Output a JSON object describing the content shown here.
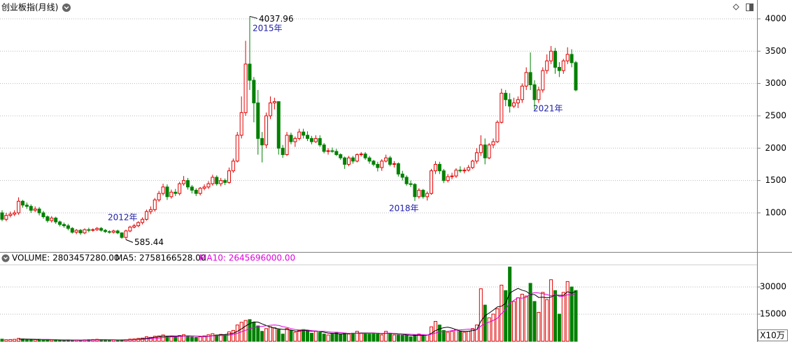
{
  "chart_data": [
    {
      "type": "candlestick",
      "title": "创业板指(月线)",
      "open": [
        1000,
        900,
        960,
        980,
        1000,
        1180,
        1120,
        1100,
        1040,
        1060,
        1000,
        940,
        880,
        920,
        860,
        820,
        800,
        760,
        700,
        730,
        690,
        740,
        730,
        740,
        760,
        730,
        710,
        700,
        720,
        690,
        620,
        720,
        780,
        800,
        850,
        900,
        1020,
        1050,
        1200,
        1300,
        1400,
        1250,
        1320,
        1300,
        1450,
        1500,
        1400,
        1350,
        1300,
        1380,
        1400,
        1450,
        1550,
        1450,
        1500,
        1470,
        1650,
        1800,
        2200,
        2550,
        3300,
        3050,
        2700,
        2150,
        2050,
        2500,
        2700,
        2720,
        2000,
        1900,
        2200,
        2100,
        2150,
        2250,
        2200,
        2150,
        2100,
        2150,
        2050,
        1950,
        1960,
        1950,
        1900,
        1850,
        1750,
        1850,
        1800,
        1900,
        1910,
        1850,
        1800,
        1750,
        1700,
        1800,
        1850,
        1750,
        1760,
        1600,
        1550,
        1450,
        1440,
        1250,
        1350,
        1250,
        1300,
        1650,
        1750,
        1650,
        1500,
        1560,
        1570,
        1660,
        1650,
        1660,
        1700,
        1800,
        1930,
        2050,
        1850,
        2050,
        2100,
        2400,
        2850,
        2750,
        2650,
        2700,
        2750,
        2960,
        3170,
        2980,
        2750,
        2900,
        3200,
        3350,
        3500,
        3250,
        3200,
        3350,
        3450,
        3322
      ],
      "high": [
        1040,
        1000,
        1020,
        1040,
        1240,
        1200,
        1160,
        1130,
        1100,
        1090,
        1030,
        960,
        950,
        940,
        880,
        850,
        830,
        780,
        750,
        750,
        760,
        770,
        760,
        780,
        780,
        750,
        730,
        740,
        740,
        700,
        740,
        800,
        830,
        870,
        930,
        1050,
        1100,
        1230,
        1340,
        1450,
        1440,
        1360,
        1370,
        1480,
        1570,
        1540,
        1430,
        1380,
        1400,
        1440,
        1490,
        1590,
        1580,
        1540,
        1530,
        1700,
        1840,
        2250,
        2800,
        3660,
        4037.96,
        3100,
        2900,
        2250,
        2550,
        2800,
        2780,
        2720,
        2050,
        2250,
        2240,
        2180,
        2300,
        2300,
        2260,
        2190,
        2200,
        2200,
        2080,
        2000,
        2010,
        1990,
        1920,
        1870,
        1880,
        1880,
        1920,
        1940,
        1940,
        1880,
        1820,
        1790,
        1830,
        1900,
        1880,
        1800,
        1780,
        1650,
        1580,
        1500,
        1460,
        1380,
        1370,
        1330,
        1680,
        1800,
        1790,
        1680,
        1600,
        1620,
        1690,
        1720,
        1700,
        1740,
        1820,
        2000,
        2200,
        2150,
        2080,
        2150,
        2430,
        2920,
        2900,
        2850,
        2780,
        2800,
        3000,
        3250,
        3480,
        3050,
        2950,
        3250,
        3450,
        3580,
        3550,
        3330,
        3380,
        3560,
        3530,
        3350
      ],
      "low": [
        870,
        870,
        930,
        950,
        970,
        1080,
        1060,
        1000,
        1010,
        960,
        910,
        850,
        850,
        830,
        790,
        770,
        730,
        680,
        670,
        660,
        670,
        700,
        710,
        720,
        710,
        690,
        680,
        680,
        670,
        600,
        585.44,
        700,
        760,
        780,
        820,
        880,
        980,
        1020,
        1170,
        1270,
        1200,
        1220,
        1260,
        1270,
        1420,
        1360,
        1300,
        1260,
        1270,
        1350,
        1370,
        1420,
        1420,
        1410,
        1430,
        1450,
        1620,
        1780,
        2150,
        2500,
        2900,
        2400,
        1900,
        1780,
        2000,
        2450,
        2600,
        1900,
        1850,
        1880,
        2060,
        2020,
        2120,
        2150,
        2110,
        2060,
        2080,
        2020,
        1920,
        1900,
        1930,
        1880,
        1820,
        1680,
        1720,
        1760,
        1780,
        1870,
        1820,
        1760,
        1720,
        1640,
        1650,
        1780,
        1720,
        1700,
        1560,
        1500,
        1420,
        1400,
        1184,
        1220,
        1220,
        1190,
        1280,
        1600,
        1600,
        1460,
        1470,
        1520,
        1540,
        1620,
        1610,
        1640,
        1680,
        1760,
        1880,
        1750,
        1830,
        2000,
        2080,
        2380,
        2650,
        2550,
        2620,
        2620,
        2700,
        2900,
        2900,
        2600,
        2700,
        2860,
        3150,
        3300,
        3150,
        3100,
        3150,
        3300,
        3250,
        2880
      ],
      "close": [
        900,
        960,
        980,
        1000,
        1180,
        1120,
        1100,
        1040,
        1060,
        1000,
        940,
        880,
        920,
        860,
        820,
        800,
        760,
        700,
        730,
        690,
        740,
        730,
        740,
        760,
        730,
        710,
        700,
        720,
        690,
        620,
        720,
        780,
        800,
        850,
        900,
        1020,
        1050,
        1200,
        1300,
        1400,
        1250,
        1320,
        1300,
        1450,
        1500,
        1400,
        1350,
        1300,
        1380,
        1400,
        1450,
        1550,
        1450,
        1500,
        1470,
        1650,
        1800,
        2200,
        2550,
        3300,
        3050,
        2700,
        2150,
        2050,
        2500,
        2700,
        2720,
        2000,
        1900,
        2200,
        2100,
        2150,
        2250,
        2200,
        2150,
        2100,
        2150,
        2050,
        1950,
        1960,
        1950,
        1900,
        1850,
        1750,
        1850,
        1800,
        1900,
        1910,
        1850,
        1800,
        1750,
        1700,
        1800,
        1850,
        1750,
        1760,
        1600,
        1550,
        1450,
        1440,
        1250,
        1350,
        1250,
        1300,
        1650,
        1750,
        1650,
        1500,
        1560,
        1570,
        1660,
        1650,
        1660,
        1700,
        1800,
        1930,
        2050,
        1850,
        2050,
        2100,
        2400,
        2850,
        2750,
        2650,
        2700,
        2750,
        2960,
        3170,
        2980,
        2750,
        2900,
        3200,
        3350,
        3500,
        3250,
        3200,
        3350,
        3450,
        3322,
        2900
      ],
      "annotations": [
        "2012年",
        "2015年",
        "2018年",
        "2021年"
      ],
      "up_color": "#e00000",
      "down_color": "#008000",
      "annotation_color": "#1c1ca8",
      "ylim": [
        406,
        4237
      ],
      "yticks": [
        1000,
        1500,
        2000,
        2500,
        3000,
        3500,
        4000
      ],
      "grid": true
    },
    {
      "type": "volume",
      "legend": [
        "VOLUME: 2803457280.00",
        "MA5: 2758166528.00",
        "MA10: 2645696000.00"
      ],
      "unit": "X10万",
      "values": [
        1200,
        900,
        1000,
        1100,
        1600,
        1300,
        900,
        800,
        900,
        1100,
        900,
        700,
        800,
        700,
        600,
        700,
        800,
        600,
        700,
        500,
        800,
        900,
        1000,
        1100,
        900,
        800,
        700,
        800,
        700,
        600,
        900,
        1200,
        1300,
        1600,
        1800,
        2500,
        2200,
        2800,
        3000,
        3500,
        2800,
        2600,
        2500,
        3200,
        3600,
        3000,
        2400,
        2200,
        2500,
        3000,
        3600,
        4200,
        3500,
        3800,
        3600,
        5200,
        6000,
        9000,
        10500,
        11500,
        12000,
        10500,
        8500,
        5500,
        7000,
        8000,
        7500,
        6500,
        4000,
        7000,
        6000,
        5000,
        6000,
        6500,
        6000,
        4500,
        5500,
        5000,
        4000,
        3500,
        4000,
        5000,
        4000,
        4500,
        4000,
        4500,
        5500,
        4500,
        4500,
        4000,
        4500,
        4500,
        3500,
        5500,
        4000,
        3500,
        3500,
        3500,
        3500,
        2500,
        3500,
        4000,
        3000,
        3500,
        8000,
        11000,
        9000,
        6000,
        5000,
        5500,
        6500,
        5500,
        5000,
        5500,
        7000,
        9000,
        29000,
        20000,
        13000,
        15000,
        18000,
        31000,
        28000,
        41000,
        22000,
        24000,
        26000,
        25000,
        32000,
        22000,
        16000,
        27000,
        23000,
        34000,
        28000,
        15000,
        27000,
        33000,
        30000,
        28034.5728
      ],
      "ma5": [
        null,
        null,
        null,
        null,
        1160,
        1180,
        1180,
        1140,
        1100,
        1000,
        920,
        880,
        880,
        840,
        740,
        700,
        720,
        680,
        680,
        660,
        680,
        700,
        780,
        860,
        940,
        940,
        900,
        860,
        780,
        720,
        740,
        840,
        940,
        1120,
        1360,
        1680,
        1880,
        2180,
        2460,
        2800,
        2860,
        2940,
        2880,
        2920,
        2940,
        2980,
        2940,
        2880,
        2740,
        2620,
        2740,
        3100,
        3360,
        3620,
        3740,
        4060,
        4420,
        5520,
        6860,
        8440,
        9800,
        10700,
        10600,
        9600,
        8700,
        7900,
        7300,
        6900,
        6600,
        6600,
        6200,
        5700,
        5600,
        6100,
        5900,
        5600,
        5700,
        5500,
        5000,
        4500,
        4400,
        4300,
        4100,
        4200,
        4300,
        4400,
        4500,
        4600,
        4600,
        4600,
        4600,
        4400,
        4200,
        4400,
        4400,
        4200,
        4000,
        4000,
        3600,
        3300,
        3300,
        3400,
        3300,
        3300,
        4400,
        5900,
        6900,
        7500,
        7800,
        7300,
        6400,
        5700,
        5500,
        5600,
        5900,
        6400,
        11100,
        14100,
        15600,
        17200,
        19000,
        19400,
        21000,
        26600,
        28000,
        29200,
        28200,
        27600,
        25800,
        25800,
        24200,
        24400,
        24000,
        24400,
        25600,
        25400,
        25400,
        27400,
        26600,
        27581.66528
      ],
      "ma10": [
        null,
        null,
        null,
        null,
        null,
        null,
        null,
        null,
        null,
        1080,
        1050,
        1030,
        1010,
        970,
        870,
        810,
        800,
        780,
        760,
        700,
        690,
        710,
        730,
        770,
        800,
        810,
        800,
        820,
        820,
        830,
        840,
        870,
        900,
        950,
        1040,
        1210,
        1360,
        1560,
        1790,
        2080,
        2270,
        2410,
        2530,
        2690,
        2870,
        2920,
        2940,
        2880,
        2830,
        2780,
        2860,
        3020,
        3120,
        3180,
        3180,
        3400,
        3760,
        4440,
        5240,
        6090,
        6930,
        7560,
        8060,
        8230,
        8570,
        8850,
        9000,
        8750,
        8100,
        7650,
        7050,
        6500,
        6250,
        6350,
        6250,
        5900,
        5700,
        5550,
        5550,
        5200,
        5000,
        5000,
        4800,
        4600,
        4400,
        4400,
        4400,
        4350,
        4400,
        4450,
        4500,
        4450,
        4400,
        4500,
        4500,
        4400,
        4200,
        4100,
        4000,
        3850,
        3750,
        3700,
        3650,
        3450,
        3850,
        4600,
        5150,
        5400,
        5550,
        5850,
        6150,
        6300,
        6500,
        6700,
        6600,
        6400,
        8400,
        9800,
        10600,
        11550,
        12700,
        15250,
        17550,
        21100,
        22600,
        24100,
        23800,
        24300,
        26200,
        26900,
        26700,
        26300,
        25800,
        25100,
        25700,
        24800,
        24900,
        25700,
        25500,
        26456.96
      ],
      "ma5_color": "#000000",
      "ma10_color": "#e000e0",
      "ylim": [
        0,
        42000
      ],
      "yticks": [
        15000,
        30000
      ],
      "grid": true
    }
  ]
}
